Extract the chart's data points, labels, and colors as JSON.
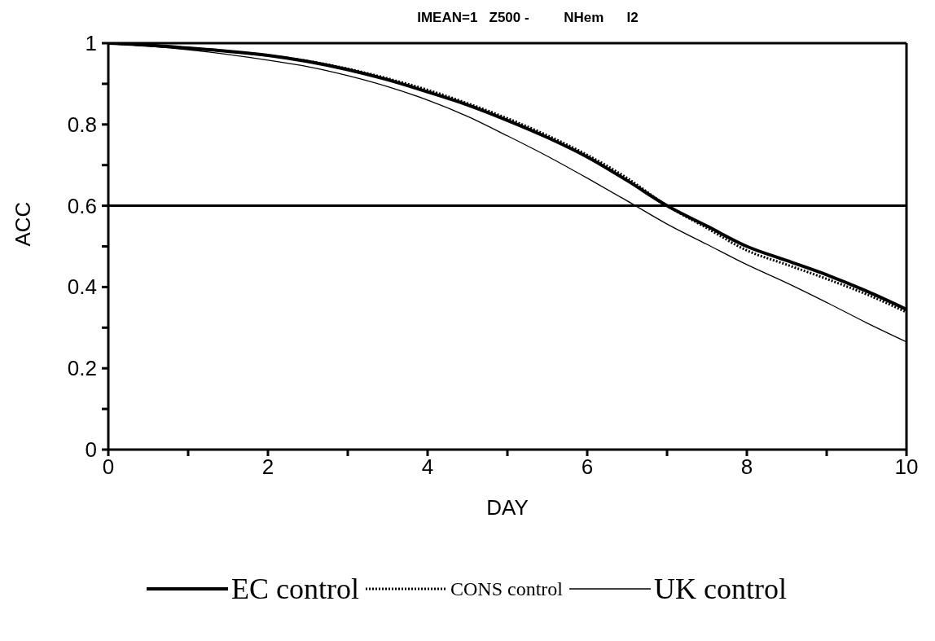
{
  "chart_data": {
    "type": "line",
    "title": "IMEAN=1   Z500 -         NHem      I2",
    "xlabel": "DAY",
    "ylabel": "ACC",
    "x": [
      0,
      0.5,
      1,
      1.5,
      2,
      2.5,
      3,
      3.5,
      4,
      4.5,
      5,
      5.5,
      6,
      6.5,
      7,
      7.5,
      8,
      8.5,
      9,
      9.5,
      10
    ],
    "series": [
      {
        "name": "EC control",
        "color": "#000000",
        "line_style": "solid",
        "values": [
          1.0,
          0.995,
          0.988,
          0.98,
          0.97,
          0.955,
          0.935,
          0.91,
          0.88,
          0.848,
          0.81,
          0.768,
          0.72,
          0.662,
          0.6,
          0.55,
          0.5,
          0.465,
          0.43,
          0.39,
          0.345
        ]
      },
      {
        "name": "CONS control",
        "color": "#000000",
        "line_style": "dotted",
        "values": [
          1.0,
          0.995,
          0.988,
          0.98,
          0.97,
          0.956,
          0.937,
          0.913,
          0.885,
          0.852,
          0.815,
          0.773,
          0.725,
          0.668,
          0.6,
          0.545,
          0.49,
          0.455,
          0.42,
          0.382,
          0.338
        ]
      },
      {
        "name": "UK control",
        "color": "#000000",
        "line_style": "solid",
        "values": [
          1.0,
          0.993,
          0.984,
          0.972,
          0.958,
          0.942,
          0.92,
          0.893,
          0.86,
          0.82,
          0.772,
          0.722,
          0.668,
          0.612,
          0.555,
          0.505,
          0.455,
          0.41,
          0.362,
          0.312,
          0.265
        ]
      }
    ],
    "xlim": [
      0,
      10
    ],
    "ylim": [
      0,
      1
    ],
    "xticks": [
      0,
      {
        "value": 1,
        "label": null
      },
      2,
      {
        "value": 3,
        "label": null
      },
      4,
      {
        "value": 5,
        "label": null
      },
      6,
      {
        "value": 7,
        "label": null
      },
      8,
      {
        "value": 9,
        "label": null
      },
      10
    ],
    "yticks": [
      0,
      {
        "value": 0.1,
        "label": null
      },
      0.2,
      {
        "value": 0.3,
        "label": null
      },
      0.4,
      {
        "value": 0.5,
        "label": null
      },
      0.6,
      {
        "value": 0.7,
        "label": null
      },
      0.8,
      {
        "value": 0.9,
        "label": null
      },
      1
    ],
    "ref_lines": [
      {
        "axis": "y",
        "value": 0.6,
        "color": "#000000"
      }
    ],
    "grid": false,
    "legend": "bottom",
    "marker": "none"
  }
}
